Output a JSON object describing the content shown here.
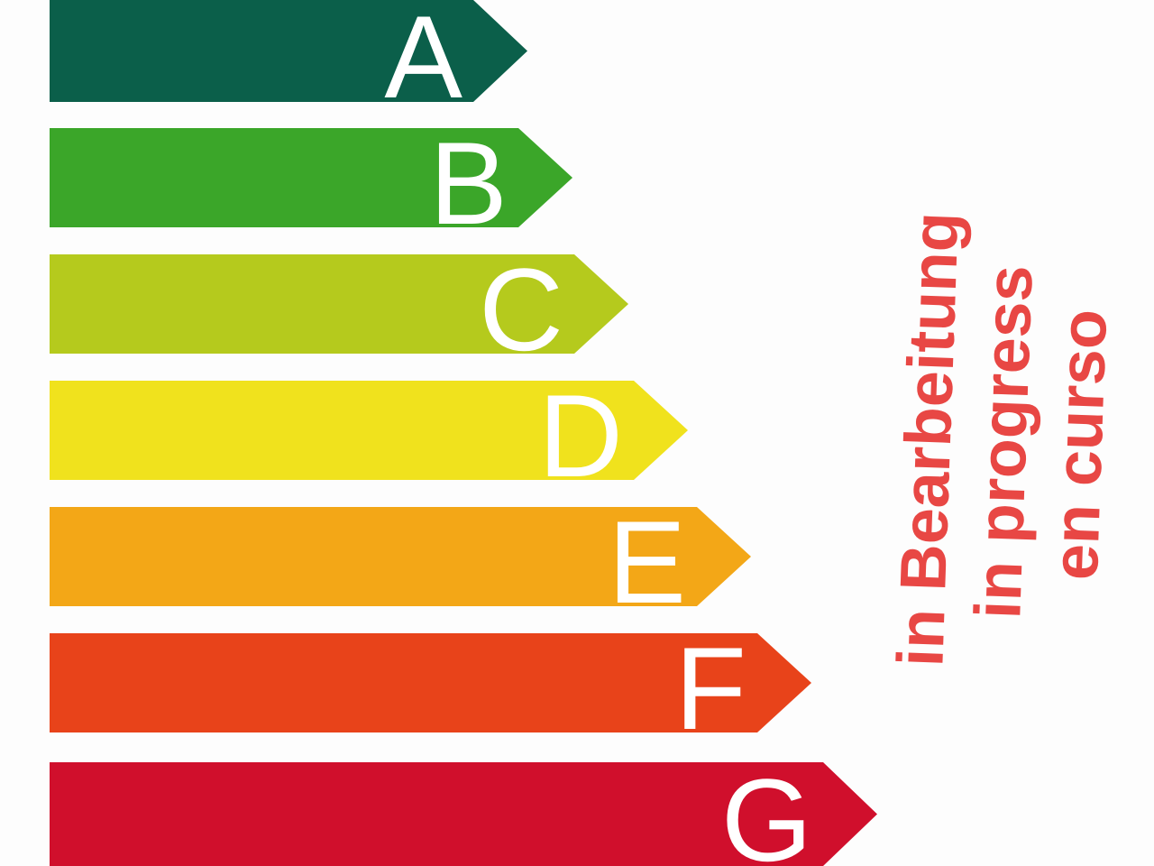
{
  "page": {
    "background": "#fdfdfd"
  },
  "chart_data": {
    "type": "bar",
    "orientation": "horizontal",
    "description": "Energy efficiency rating arrows A to G, shortest (best) on top to longest (worst) at bottom",
    "categories": [
      "A",
      "B",
      "C",
      "D",
      "E",
      "F",
      "G"
    ],
    "values": [
      530,
      580,
      642,
      708,
      778,
      845,
      918
    ],
    "value_unit": "arrow length in px measured from common left edge",
    "colors": [
      "#0b5f4a",
      "#3ba629",
      "#b5ca1d",
      "#f0e21d",
      "#f3a717",
      "#e8431a",
      "#d00f2c"
    ],
    "letter_color": "#ffffff",
    "grid": false,
    "legend_position": "none"
  },
  "watermark": {
    "lines": [
      "in Bearbeitung",
      "in progress",
      "en curso"
    ],
    "color": "#e84744"
  }
}
